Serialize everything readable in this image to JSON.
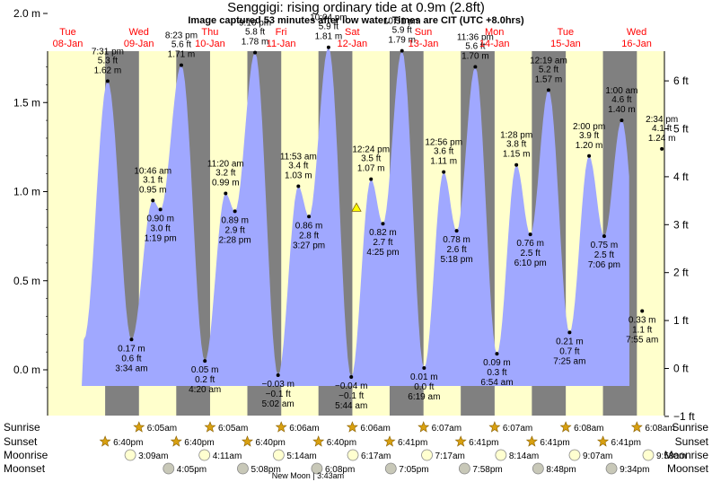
{
  "header": {
    "title": "Senggigi: rising  ordinary tide at 0.9m (2.8ft)",
    "subtitle": "Image captured 53 minutes after low water. Times are CIT (UTC +8.0hrs)"
  },
  "colors": {
    "day": "#ffffcc",
    "night": "#808080",
    "tide_fill": "#a0a8ff",
    "day_label": "#ff0000",
    "marker": "#ffff00"
  },
  "days": [
    {
      "weekday": "Tue",
      "date": "08-Jan"
    },
    {
      "weekday": "Wed",
      "date": "09-Jan"
    },
    {
      "weekday": "Thu",
      "date": "10-Jan"
    },
    {
      "weekday": "Fri",
      "date": "11-Jan"
    },
    {
      "weekday": "Sat",
      "date": "12-Jan"
    },
    {
      "weekday": "Sun",
      "date": "13-Jan"
    },
    {
      "weekday": "Mon",
      "date": "14-Jan"
    },
    {
      "weekday": "Tue",
      "date": "15-Jan"
    },
    {
      "weekday": "Wed",
      "date": "16-Jan"
    }
  ],
  "chart_data": {
    "type": "area",
    "ylabel_left": "m",
    "ylabel_right": "ft",
    "ylim_m": [
      -0.15,
      2.05
    ],
    "left_ticks": [
      "2.0 m",
      "1.5 m",
      "1.0 m",
      "0.5 m",
      "0.0 m"
    ],
    "left_tick_values": [
      2.0,
      1.5,
      1.0,
      0.5,
      0.0
    ],
    "right_ticks": [
      "6 ft",
      "5 ft",
      "4 ft",
      "3 ft",
      "2 ft",
      "1 ft",
      "0 ft",
      "−1 ft"
    ],
    "right_tick_values": [
      6,
      5,
      4,
      3,
      2,
      1,
      0,
      -1
    ],
    "current": {
      "height_m": 0.9,
      "label": "rising  ordinary tide at 0.9m (2.8ft)"
    },
    "tides": [
      {
        "day": 0,
        "time": "7:31 pm",
        "m": "1.62 m",
        "ft": "5.3 ft",
        "value": 1.62,
        "type": "high"
      },
      {
        "day": 1,
        "time": "3:34 am",
        "m": "0.17 m",
        "ft": "0.6 ft",
        "value": 0.17,
        "type": "low"
      },
      {
        "day": 1,
        "time": "10:46 am",
        "m": "0.95 m",
        "ft": "3.1 ft",
        "value": 0.95,
        "type": "high"
      },
      {
        "day": 1,
        "time": "1:19 pm",
        "m": "0.90 m",
        "ft": "3.0 ft",
        "value": 0.9,
        "type": "low"
      },
      {
        "day": 1,
        "time": "8:23 pm",
        "m": "1.71 m",
        "ft": "5.6 ft",
        "value": 1.71,
        "type": "high"
      },
      {
        "day": 2,
        "time": "4:20 am",
        "m": "0.05 m",
        "ft": "0.2 ft",
        "value": 0.05,
        "type": "low"
      },
      {
        "day": 2,
        "time": "11:20 am",
        "m": "0.99 m",
        "ft": "3.2 ft",
        "value": 0.99,
        "type": "high"
      },
      {
        "day": 2,
        "time": "2:28 pm",
        "m": "0.89 m",
        "ft": "2.9 ft",
        "value": 0.89,
        "type": "low"
      },
      {
        "day": 2,
        "time": "9:16 pm",
        "m": "1.78 m",
        "ft": "5.8 ft",
        "value": 1.78,
        "type": "high"
      },
      {
        "day": 3,
        "time": "5:02 am",
        "m": "−0.03 m",
        "ft": "−0.1 ft",
        "value": -0.03,
        "type": "low"
      },
      {
        "day": 3,
        "time": "11:53 am",
        "m": "1.03 m",
        "ft": "3.4 ft",
        "value": 1.03,
        "type": "high"
      },
      {
        "day": 3,
        "time": "3:27 pm",
        "m": "0.86 m",
        "ft": "2.8 ft",
        "value": 0.86,
        "type": "low"
      },
      {
        "day": 3,
        "time": "10:04 pm",
        "m": "1.81 m",
        "ft": "5.9 ft",
        "value": 1.81,
        "type": "high"
      },
      {
        "day": 4,
        "time": "5:44 am",
        "m": "−0.04 m",
        "ft": "−0.1 ft",
        "value": -0.04,
        "type": "low"
      },
      {
        "day": 4,
        "time": "12:24 pm",
        "m": "1.07 m",
        "ft": "3.5 ft",
        "value": 1.07,
        "type": "high"
      },
      {
        "day": 4,
        "time": "4:25 pm",
        "m": "0.82 m",
        "ft": "2.7 ft",
        "value": 0.82,
        "type": "low"
      },
      {
        "day": 4,
        "time": "10:51 pm",
        "m": "1.79 m",
        "ft": "5.9 ft",
        "value": 1.79,
        "type": "high"
      },
      {
        "day": 5,
        "time": "6:19 am",
        "m": "0.01 m",
        "ft": "0.0 ft",
        "value": 0.01,
        "type": "low"
      },
      {
        "day": 5,
        "time": "12:56 pm",
        "m": "1.11 m",
        "ft": "3.6 ft",
        "value": 1.11,
        "type": "high"
      },
      {
        "day": 5,
        "time": "5:18 pm",
        "m": "0.78 m",
        "ft": "2.6 ft",
        "value": 0.78,
        "type": "low"
      },
      {
        "day": 5,
        "time": "11:36 pm",
        "m": "1.70 m",
        "ft": "5.6 ft",
        "value": 1.7,
        "type": "high"
      },
      {
        "day": 6,
        "time": "6:54 am",
        "m": "0.09 m",
        "ft": "0.3 ft",
        "value": 0.09,
        "type": "low"
      },
      {
        "day": 6,
        "time": "1:28 pm",
        "m": "1.15 m",
        "ft": "3.8 ft",
        "value": 1.15,
        "type": "high"
      },
      {
        "day": 6,
        "time": "6:10 pm",
        "m": "0.76 m",
        "ft": "2.5 ft",
        "value": 0.76,
        "type": "low"
      },
      {
        "day": 7,
        "time": "12:19 am",
        "m": "1.57 m",
        "ft": "5.2 ft",
        "value": 1.57,
        "type": "high"
      },
      {
        "day": 7,
        "time": "7:25 am",
        "m": "0.21 m",
        "ft": "0.7 ft",
        "value": 0.21,
        "type": "low"
      },
      {
        "day": 7,
        "time": "2:00 pm",
        "m": "1.20 m",
        "ft": "3.9 ft",
        "value": 1.2,
        "type": "high"
      },
      {
        "day": 7,
        "time": "7:06 pm",
        "m": "0.75 m",
        "ft": "2.5 ft",
        "value": 0.75,
        "type": "low"
      },
      {
        "day": 8,
        "time": "1:00 am",
        "m": "1.40 m",
        "ft": "4.6 ft",
        "value": 1.4,
        "type": "high"
      },
      {
        "day": 8,
        "time": "7:55 am",
        "m": "0.33 m",
        "ft": "1.1 ft",
        "value": 0.33,
        "type": "low"
      },
      {
        "day": 8,
        "time": "2:34 pm",
        "m": "1.24 m",
        "ft": "4.1 ft",
        "value": 1.24,
        "type": "high"
      }
    ]
  },
  "astro": {
    "row_labels": [
      "Sunrise",
      "Sunset",
      "Moonrise",
      "Moonset"
    ],
    "sunrise": [
      {
        "day": 1,
        "time": "6:05am"
      },
      {
        "day": 2,
        "time": "6:05am"
      },
      {
        "day": 3,
        "time": "6:06am"
      },
      {
        "day": 4,
        "time": "6:06am"
      },
      {
        "day": 5,
        "time": "6:07am"
      },
      {
        "day": 6,
        "time": "6:07am"
      },
      {
        "day": 7,
        "time": "6:08am"
      },
      {
        "day": 8,
        "time": "6:08am"
      }
    ],
    "sunset": [
      {
        "day": 0,
        "time": "6:40pm"
      },
      {
        "day": 1,
        "time": "6:40pm"
      },
      {
        "day": 2,
        "time": "6:40pm"
      },
      {
        "day": 3,
        "time": "6:40pm"
      },
      {
        "day": 4,
        "time": "6:41pm"
      },
      {
        "day": 5,
        "time": "6:41pm"
      },
      {
        "day": 6,
        "time": "6:41pm"
      },
      {
        "day": 7,
        "time": "6:41pm"
      }
    ],
    "moonrise": [
      {
        "day": 1,
        "time": "3:09am"
      },
      {
        "day": 2,
        "time": "4:11am"
      },
      {
        "day": 3,
        "time": "5:14am"
      },
      {
        "day": 4,
        "time": "6:17am"
      },
      {
        "day": 5,
        "time": "7:17am"
      },
      {
        "day": 6,
        "time": "8:14am"
      },
      {
        "day": 7,
        "time": "9:07am"
      },
      {
        "day": 8,
        "time": "9:58am"
      }
    ],
    "moonset": [
      {
        "day": 1,
        "time": "4:05pm"
      },
      {
        "day": 2,
        "time": "5:08pm"
      },
      {
        "day": 3,
        "time": "6:08pm"
      },
      {
        "day": 4,
        "time": "7:05pm"
      },
      {
        "day": 5,
        "time": "7:58pm"
      },
      {
        "day": 6,
        "time": "8:48pm"
      },
      {
        "day": 7,
        "time": "9:34pm"
      }
    ],
    "moon_phase": "New Moon | 3:43am"
  }
}
